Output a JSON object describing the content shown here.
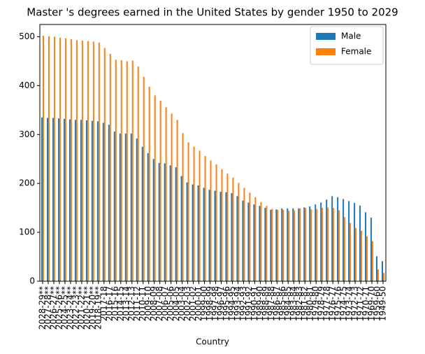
{
  "chart_data": {
    "type": "bar",
    "title": "Master 's degrees earned in the United States by gender 1950 to 2029",
    "x_label": "Country",
    "categories": [
      "2028-29**",
      "2027-28**",
      "2026-27**",
      "2025-26**",
      "2024-25**",
      "2023-24**",
      "2022-23**",
      "2021-22**",
      "2020-21**",
      "2019-20**",
      "2018-19**",
      "2017-18",
      "2016-17",
      "2015-16",
      "2014-15",
      "2013-14",
      "2012-13",
      "2011-12",
      "2010-11",
      "2009-10",
      "2008-09",
      "2007-08",
      "2006-07",
      "2005-06",
      "2004-05",
      "2003-04",
      "2002-03",
      "2001-02",
      "2000-01",
      "1999-00",
      "1998-99",
      "1997-98",
      "1996-97",
      "1995-96",
      "1994-95",
      "1993-94",
      "1992-93",
      "1991-92",
      "1990-91",
      "1989-90",
      "1988-89",
      "1987-88",
      "1986-87",
      "1985-86",
      "1984-85",
      "1983-84",
      "1982-83",
      "1981-82",
      "1980-81",
      "1979-80",
      "1978-79",
      "1977-78",
      "1976-77",
      "1975-76",
      "1974-75",
      "1973-74",
      "1972-73",
      "1971-72",
      "1970-71",
      "1969-70",
      "1959-60",
      "1949-50"
    ],
    "series": [
      {
        "name": "Male",
        "color": "#1f77b4",
        "values": [
          335,
          334,
          334,
          333,
          332,
          331,
          330,
          330,
          329,
          328,
          327,
          324,
          320,
          306,
          302,
          302,
          302,
          292,
          275,
          262,
          250,
          242,
          241,
          237,
          233,
          215,
          202,
          198,
          196,
          191,
          187,
          185,
          183,
          182,
          180,
          174,
          165,
          161,
          157,
          154,
          150,
          146,
          147,
          149,
          149,
          149,
          149,
          151,
          153,
          157,
          161,
          167,
          174,
          172,
          168,
          164,
          160,
          155,
          141,
          130,
          51,
          41
        ]
      },
      {
        "name": "Female",
        "color": "#ff7f0e",
        "values": [
          502,
          501,
          500,
          498,
          497,
          495,
          493,
          492,
          491,
          490,
          488,
          477,
          465,
          453,
          452,
          450,
          451,
          439,
          418,
          398,
          380,
          369,
          356,
          343,
          330,
          303,
          284,
          275,
          267,
          256,
          247,
          239,
          229,
          220,
          212,
          201,
          191,
          181,
          172,
          162,
          154,
          148,
          146,
          146,
          144,
          145,
          149,
          150,
          147,
          148,
          150,
          151,
          150,
          145,
          131,
          119,
          109,
          103,
          92,
          82,
          24,
          17
        ]
      }
    ],
    "ylim": [
      0,
      525
    ],
    "yticks": [
      0,
      100,
      200,
      300,
      400,
      500
    ],
    "legend": "upper right"
  }
}
